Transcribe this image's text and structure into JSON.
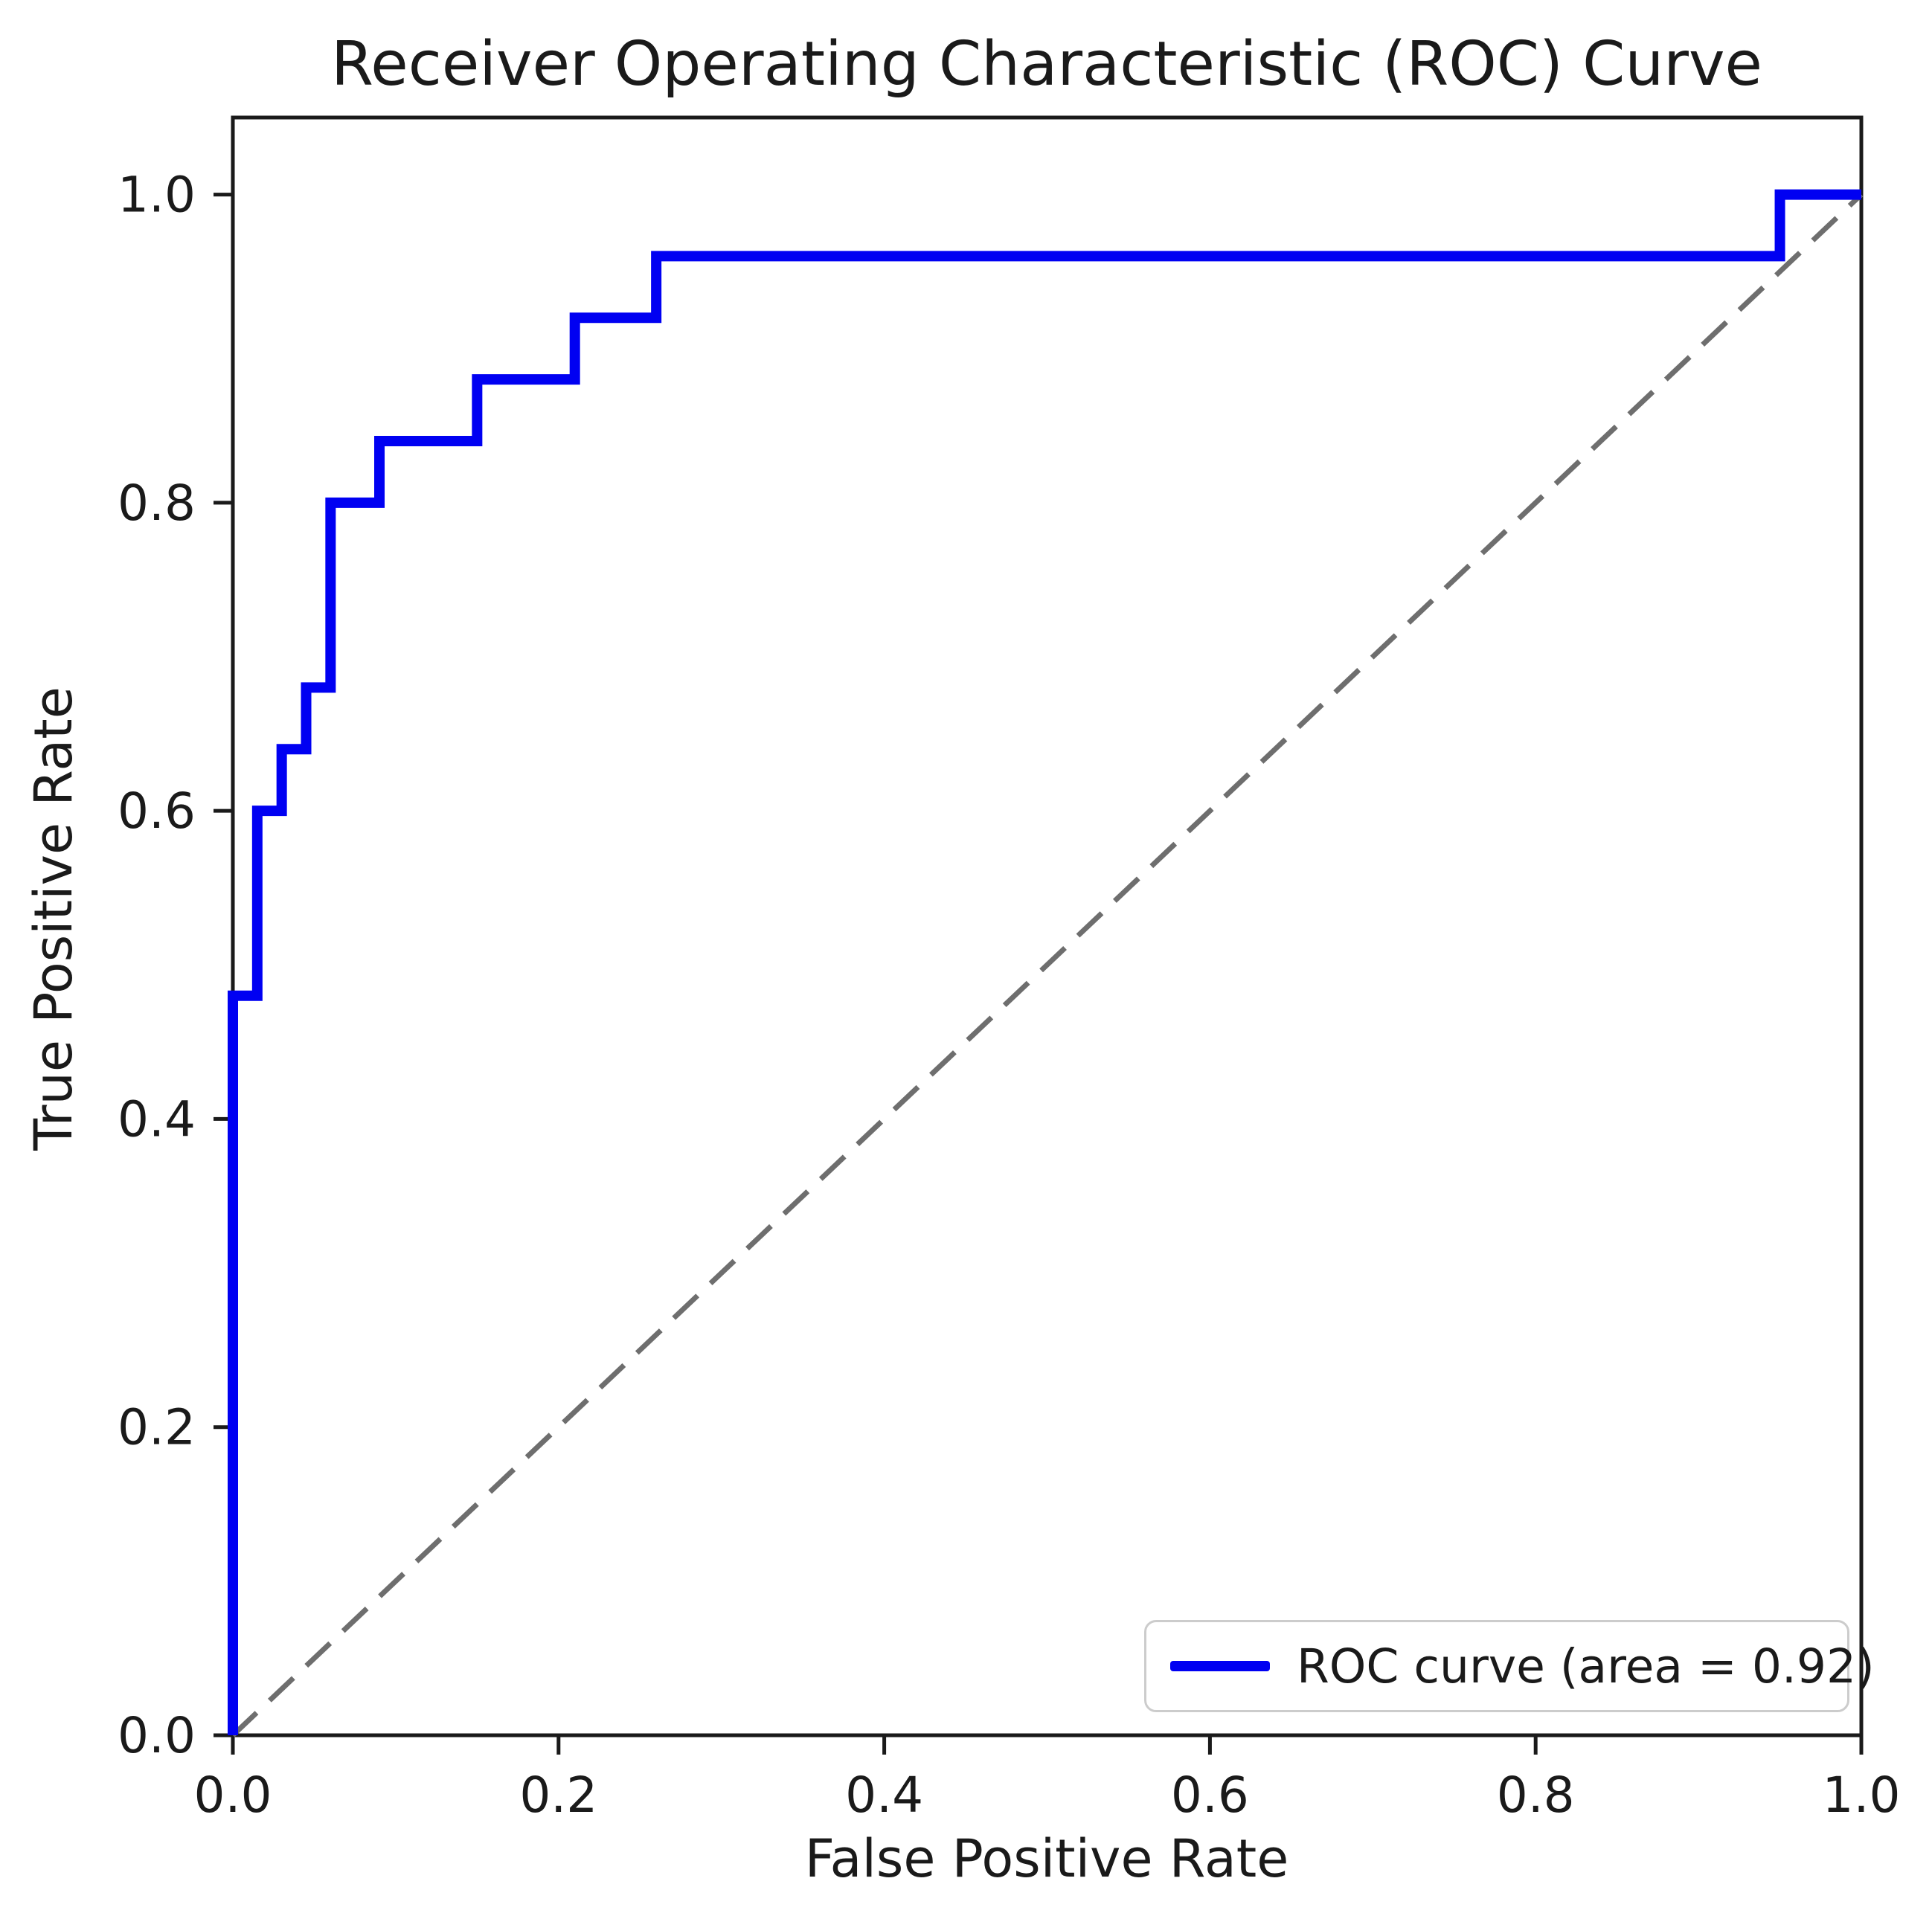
{
  "figure": {
    "background_color": "#ffffff",
    "text_color": "#1a1a1a",
    "spine_color": "#1a1a1a"
  },
  "chart_data": {
    "type": "line",
    "title": "Receiver Operating Characteristic (ROC) Curve",
    "xlabel": "False Positive Rate",
    "ylabel": "True Positive Rate",
    "xlim": [
      0.0,
      1.0
    ],
    "ylim": [
      0.0,
      1.05
    ],
    "grid": false,
    "xticks": {
      "values": [
        0.0,
        0.2,
        0.4,
        0.6,
        0.8,
        1.0
      ],
      "labels": [
        "0.0",
        "0.2",
        "0.4",
        "0.6",
        "0.8",
        "1.0"
      ]
    },
    "yticks": {
      "values": [
        0.0,
        0.2,
        0.4,
        0.6,
        0.8,
        1.0
      ],
      "labels": [
        "0.0",
        "0.2",
        "0.4",
        "0.6",
        "0.8",
        "1.0"
      ]
    },
    "auc": 0.92,
    "legend": {
      "position": "lower right",
      "entries": [
        {
          "label": "ROC curve (area = 0.92)",
          "color": "#0000f2",
          "style": "solid"
        }
      ]
    },
    "series": [
      {
        "name": "roc-curve",
        "label": "ROC curve (area = 0.92)",
        "color": "#0000f2",
        "linestyle": "solid",
        "linewidth": 14,
        "points": [
          [
            0.0,
            0.0
          ],
          [
            0.0,
            0.48
          ],
          [
            0.015,
            0.48
          ],
          [
            0.015,
            0.6
          ],
          [
            0.03,
            0.6
          ],
          [
            0.03,
            0.64
          ],
          [
            0.045,
            0.64
          ],
          [
            0.045,
            0.68
          ],
          [
            0.06,
            0.68
          ],
          [
            0.06,
            0.8
          ],
          [
            0.09,
            0.8
          ],
          [
            0.09,
            0.84
          ],
          [
            0.15,
            0.84
          ],
          [
            0.15,
            0.88
          ],
          [
            0.21,
            0.88
          ],
          [
            0.21,
            0.92
          ],
          [
            0.26,
            0.92
          ],
          [
            0.26,
            0.96
          ],
          [
            0.95,
            0.96
          ],
          [
            0.95,
            1.0
          ],
          [
            1.0,
            1.0
          ]
        ]
      },
      {
        "name": "chance-diagonal",
        "label": "",
        "color": "#6e6e6e",
        "linestyle": "dashed",
        "linewidth": 7,
        "points": [
          [
            0.0,
            0.0
          ],
          [
            1.0,
            1.0
          ]
        ]
      }
    ]
  }
}
